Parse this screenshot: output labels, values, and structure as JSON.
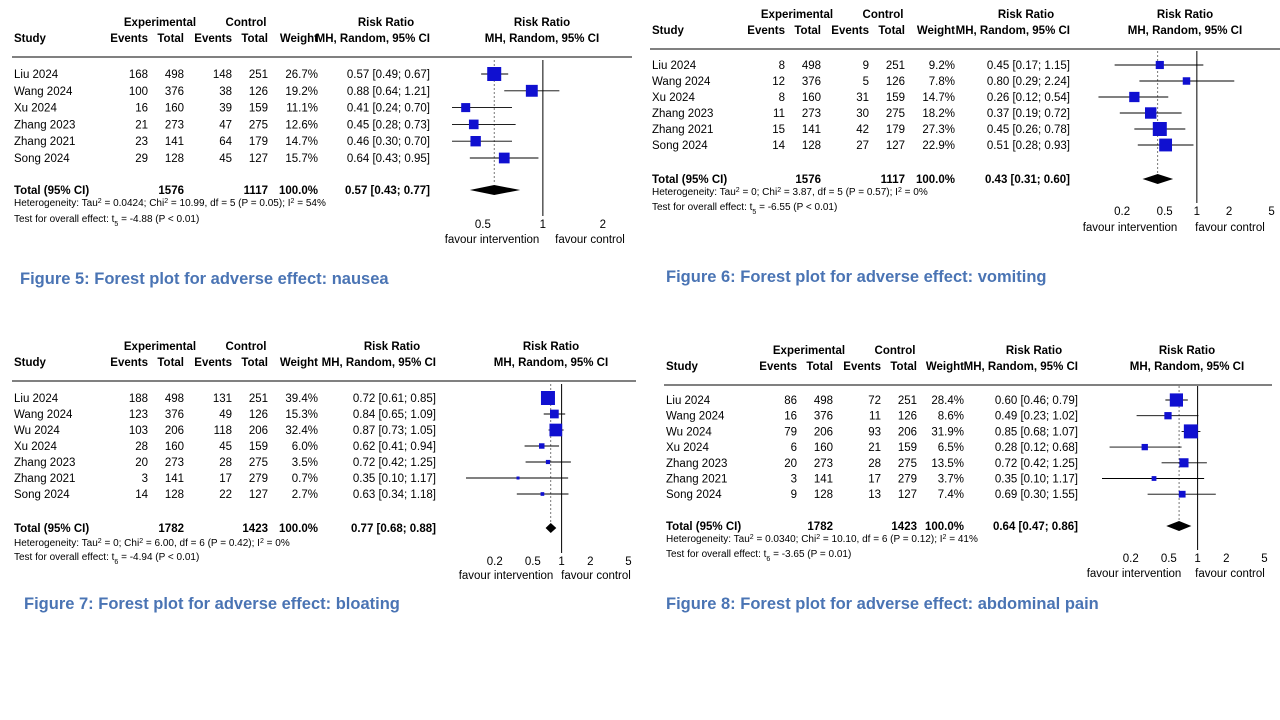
{
  "colors": {
    "accent": "#4a74b4",
    "box": "#1010d0",
    "diamond": "#000000"
  },
  "panels": [
    {
      "caption": "Figure 5: Forest plot for adverse effect: nausea",
      "chart_data": {
        "type": "forest",
        "headers": {
          "study": "Study",
          "exp_top": "Experimental",
          "ctl_top": "Control",
          "events": "Events",
          "total": "Total",
          "weight": "Weight",
          "rr_top": "Risk Ratio",
          "rr_bottom": "MH, Random, 95% CI"
        },
        "studies": [
          {
            "name": "Liu 2024",
            "e_events": "168",
            "e_total": "498",
            "c_events": "148",
            "c_total": "251",
            "weight": "26.7%",
            "rr_text": "0.57 [0.49; 0.67]",
            "rr": 0.57,
            "lo": 0.49,
            "hi": 0.67,
            "w": 26.7
          },
          {
            "name": "Wang 2024",
            "e_events": "100",
            "e_total": "376",
            "c_events": "38",
            "c_total": "126",
            "weight": "19.2%",
            "rr_text": "0.88 [0.64; 1.21]",
            "rr": 0.88,
            "lo": 0.64,
            "hi": 1.21,
            "w": 19.2
          },
          {
            "name": "Xu 2024",
            "e_events": "16",
            "e_total": "160",
            "c_events": "39",
            "c_total": "159",
            "weight": "11.1%",
            "rr_text": "0.41 [0.24; 0.70]",
            "rr": 0.41,
            "lo": 0.24,
            "hi": 0.7,
            "w": 11.1
          },
          {
            "name": "Zhang 2023",
            "e_events": "21",
            "e_total": "273",
            "c_events": "47",
            "c_total": "275",
            "weight": "12.6%",
            "rr_text": "0.45 [0.28; 0.73]",
            "rr": 0.45,
            "lo": 0.28,
            "hi": 0.73,
            "w": 12.6
          },
          {
            "name": "Zhang 2021",
            "e_events": "23",
            "e_total": "141",
            "c_events": "64",
            "c_total": "179",
            "weight": "14.7%",
            "rr_text": "0.46 [0.30; 0.70]",
            "rr": 0.46,
            "lo": 0.3,
            "hi": 0.7,
            "w": 14.7
          },
          {
            "name": "Song 2024",
            "e_events": "29",
            "e_total": "128",
            "c_events": "45",
            "c_total": "127",
            "weight": "15.7%",
            "rr_text": "0.64 [0.43; 0.95]",
            "rr": 0.64,
            "lo": 0.43,
            "hi": 0.95,
            "w": 15.7
          }
        ],
        "total": {
          "label": "Total (95% CI)",
          "e_total": "1576",
          "c_total": "1117",
          "weight": "100.0%",
          "rr_text": "0.57 [0.43; 0.77]",
          "rr": 0.57,
          "lo": 0.43,
          "hi": 0.77
        },
        "heterogeneity": "Heterogeneity: Tau² = 0.0424; Chi² = 10.99, df = 5 (P = 0.05); I² = 54%",
        "overall_test": "Test for overall effect: t₅ = -4.88 (P < 0.01)",
        "xaxis": {
          "scale": "log",
          "ticks": [
            0.5,
            1,
            2
          ],
          "tick_labels": [
            "0.5",
            "1",
            "2"
          ],
          "range": [
            0.35,
            2.8
          ]
        },
        "favour_left": "favour intervention",
        "favour_right": "favour control"
      }
    },
    {
      "caption": "Figure 6: Forest plot for adverse effect: vomiting",
      "chart_data": {
        "type": "forest",
        "headers": {
          "study": "Study",
          "exp_top": "Experimental",
          "ctl_top": "Control",
          "events": "Events",
          "total": "Total",
          "weight": "Weight",
          "rr_top": "Risk Ratio",
          "rr_bottom": "MH, Random, 95% CI"
        },
        "studies": [
          {
            "name": "Liu 2024",
            "e_events": "8",
            "e_total": "498",
            "c_events": "9",
            "c_total": "251",
            "weight": "9.2%",
            "rr_text": "0.45 [0.17; 1.15]",
            "rr": 0.45,
            "lo": 0.17,
            "hi": 1.15,
            "w": 9.2
          },
          {
            "name": "Wang 2024",
            "e_events": "12",
            "e_total": "376",
            "c_events": "5",
            "c_total": "126",
            "weight": "7.8%",
            "rr_text": "0.80 [0.29; 2.24]",
            "rr": 0.8,
            "lo": 0.29,
            "hi": 2.24,
            "w": 7.8
          },
          {
            "name": "Xu 2024",
            "e_events": "8",
            "e_total": "160",
            "c_events": "31",
            "c_total": "159",
            "weight": "14.7%",
            "rr_text": "0.26 [0.12; 0.54]",
            "rr": 0.26,
            "lo": 0.12,
            "hi": 0.54,
            "w": 14.7
          },
          {
            "name": "Zhang 2023",
            "e_events": "11",
            "e_total": "273",
            "c_events": "30",
            "c_total": "275",
            "weight": "18.2%",
            "rr_text": "0.37 [0.19; 0.72]",
            "rr": 0.37,
            "lo": 0.19,
            "hi": 0.72,
            "w": 18.2
          },
          {
            "name": "Zhang 2021",
            "e_events": "15",
            "e_total": "141",
            "c_events": "42",
            "c_total": "179",
            "weight": "27.3%",
            "rr_text": "0.45 [0.26; 0.78]",
            "rr": 0.45,
            "lo": 0.26,
            "hi": 0.78,
            "w": 27.3
          },
          {
            "name": "Song 2024",
            "e_events": "14",
            "e_total": "128",
            "c_events": "27",
            "c_total": "127",
            "weight": "22.9%",
            "rr_text": "0.51 [0.28; 0.93]",
            "rr": 0.51,
            "lo": 0.28,
            "hi": 0.93,
            "w": 22.9
          }
        ],
        "total": {
          "label": "Total (95% CI)",
          "e_total": "1576",
          "c_total": "1117",
          "weight": "100.0%",
          "rr_text": "0.43 [0.31; 0.60]",
          "rr": 0.43,
          "lo": 0.31,
          "hi": 0.6
        },
        "heterogeneity": "Heterogeneity: Tau² = 0; Chi² = 3.87, df = 5 (P = 0.57); I² = 0%",
        "overall_test": "Test for overall effect: t₅ = -6.55 (P < 0.01)",
        "xaxis": {
          "scale": "log",
          "ticks": [
            0.2,
            0.5,
            1,
            2,
            5
          ],
          "tick_labels": [
            "0.2",
            "0.5",
            "1",
            "2",
            "5"
          ],
          "range": [
            0.1,
            6
          ]
        },
        "favour_left": "favour intervention",
        "favour_right": "favour control"
      }
    },
    {
      "caption": "Figure 7: Forest plot for adverse effect: bloating",
      "chart_data": {
        "type": "forest",
        "headers": {
          "study": "Study",
          "exp_top": "Experimental",
          "ctl_top": "Control",
          "events": "Events",
          "total": "Total",
          "weight": "Weight",
          "rr_top": "Risk Ratio",
          "rr_bottom": "MH, Random, 95% CI"
        },
        "studies": [
          {
            "name": "Liu 2024",
            "e_events": "188",
            "e_total": "498",
            "c_events": "131",
            "c_total": "251",
            "weight": "39.4%",
            "rr_text": "0.72 [0.61; 0.85]",
            "rr": 0.72,
            "lo": 0.61,
            "hi": 0.85,
            "w": 39.4
          },
          {
            "name": "Wang 2024",
            "e_events": "123",
            "e_total": "376",
            "c_events": "49",
            "c_total": "126",
            "weight": "15.3%",
            "rr_text": "0.84 [0.65; 1.09]",
            "rr": 0.84,
            "lo": 0.65,
            "hi": 1.09,
            "w": 15.3
          },
          {
            "name": "Wu 2024",
            "e_events": "103",
            "e_total": "206",
            "c_events": "118",
            "c_total": "206",
            "weight": "32.4%",
            "rr_text": "0.87 [0.73; 1.05]",
            "rr": 0.87,
            "lo": 0.73,
            "hi": 1.05,
            "w": 32.4
          },
          {
            "name": "Xu 2024",
            "e_events": "28",
            "e_total": "160",
            "c_events": "45",
            "c_total": "159",
            "weight": "6.0%",
            "rr_text": "0.62 [0.41; 0.94]",
            "rr": 0.62,
            "lo": 0.41,
            "hi": 0.94,
            "w": 6.0
          },
          {
            "name": "Zhang 2023",
            "e_events": "20",
            "e_total": "273",
            "c_events": "28",
            "c_total": "275",
            "weight": "3.5%",
            "rr_text": "0.72 [0.42; 1.25]",
            "rr": 0.72,
            "lo": 0.42,
            "hi": 1.25,
            "w": 3.5
          },
          {
            "name": "Zhang 2021",
            "e_events": "3",
            "e_total": "141",
            "c_events": "17",
            "c_total": "279",
            "weight": "0.7%",
            "rr_text": "0.35 [0.10; 1.17]",
            "rr": 0.35,
            "lo": 0.1,
            "hi": 1.17,
            "w": 0.7
          },
          {
            "name": "Song 2024",
            "e_events": "14",
            "e_total": "128",
            "c_events": "22",
            "c_total": "127",
            "weight": "2.7%",
            "rr_text": "0.63 [0.34; 1.18]",
            "rr": 0.63,
            "lo": 0.34,
            "hi": 1.18,
            "w": 2.7
          }
        ],
        "total": {
          "label": "Total (95% CI)",
          "e_total": "1782",
          "c_total": "1423",
          "weight": "100.0%",
          "rr_text": "0.77 [0.68; 0.88]",
          "rr": 0.77,
          "lo": 0.68,
          "hi": 0.88
        },
        "heterogeneity": "Heterogeneity: Tau² = 0; Chi² = 6.00, df = 6 (P = 0.42); I² = 0%",
        "overall_test": "Test for overall effect: t₆ = -4.94 (P < 0.01)",
        "xaxis": {
          "scale": "log",
          "ticks": [
            0.2,
            0.5,
            1,
            2,
            5
          ],
          "tick_labels": [
            "0.2",
            "0.5",
            "1",
            "2",
            "5"
          ],
          "range": [
            0.1,
            6
          ]
        },
        "favour_left": "favour intervention",
        "favour_right": "favour control"
      }
    },
    {
      "caption": "Figure 8: Forest plot for adverse effect: abdominal pain",
      "chart_data": {
        "type": "forest",
        "headers": {
          "study": "Study",
          "exp_top": "Experimental",
          "ctl_top": "Control",
          "events": "Events",
          "total": "Total",
          "weight": "Weight",
          "rr_top": "Risk Ratio",
          "rr_bottom": "MH, Random, 95% CI"
        },
        "studies": [
          {
            "name": "Liu 2024",
            "e_events": "86",
            "e_total": "498",
            "c_events": "72",
            "c_total": "251",
            "weight": "28.4%",
            "rr_text": "0.60 [0.46; 0.79]",
            "rr": 0.6,
            "lo": 0.46,
            "hi": 0.79,
            "w": 28.4
          },
          {
            "name": "Wang 2024",
            "e_events": "16",
            "e_total": "376",
            "c_events": "11",
            "c_total": "126",
            "weight": "8.6%",
            "rr_text": "0.49 [0.23; 1.02]",
            "rr": 0.49,
            "lo": 0.23,
            "hi": 1.02,
            "w": 8.6
          },
          {
            "name": "Wu 2024",
            "e_events": "79",
            "e_total": "206",
            "c_events": "93",
            "c_total": "206",
            "weight": "31.9%",
            "rr_text": "0.85 [0.68; 1.07]",
            "rr": 0.85,
            "lo": 0.68,
            "hi": 1.07,
            "w": 31.9
          },
          {
            "name": "Xu 2024",
            "e_events": "6",
            "e_total": "160",
            "c_events": "21",
            "c_total": "159",
            "weight": "6.5%",
            "rr_text": "0.28 [0.12; 0.68]",
            "rr": 0.28,
            "lo": 0.12,
            "hi": 0.68,
            "w": 6.5
          },
          {
            "name": "Zhang 2023",
            "e_events": "20",
            "e_total": "273",
            "c_events": "28",
            "c_total": "275",
            "weight": "13.5%",
            "rr_text": "0.72 [0.42; 1.25]",
            "rr": 0.72,
            "lo": 0.42,
            "hi": 1.25,
            "w": 13.5
          },
          {
            "name": "Zhang 2021",
            "e_events": "3",
            "e_total": "141",
            "c_events": "17",
            "c_total": "279",
            "weight": "3.7%",
            "rr_text": "0.35 [0.10; 1.17]",
            "rr": 0.35,
            "lo": 0.1,
            "hi": 1.17,
            "w": 3.7
          },
          {
            "name": "Song 2024",
            "e_events": "9",
            "e_total": "128",
            "c_events": "13",
            "c_total": "127",
            "weight": "7.4%",
            "rr_text": "0.69 [0.30; 1.55]",
            "rr": 0.69,
            "lo": 0.3,
            "hi": 1.55,
            "w": 7.4
          }
        ],
        "total": {
          "label": "Total (95% CI)",
          "e_total": "1782",
          "c_total": "1423",
          "weight": "100.0%",
          "rr_text": "0.64 [0.47; 0.86]",
          "rr": 0.64,
          "lo": 0.47,
          "hi": 0.86
        },
        "heterogeneity": "Heterogeneity: Tau² = 0.0340; Chi² = 10.10, df = 6 (P = 0.12); I² = 41%",
        "overall_test": "Test for overall effect: t₆ = -3.65 (P = 0.01)",
        "xaxis": {
          "scale": "log",
          "ticks": [
            0.2,
            0.5,
            1,
            2,
            5
          ],
          "tick_labels": [
            "0.2",
            "0.5",
            "1",
            "2",
            "5"
          ],
          "range": [
            0.1,
            6
          ]
        },
        "favour_left": "favour intervention",
        "favour_right": "favour control"
      }
    }
  ]
}
